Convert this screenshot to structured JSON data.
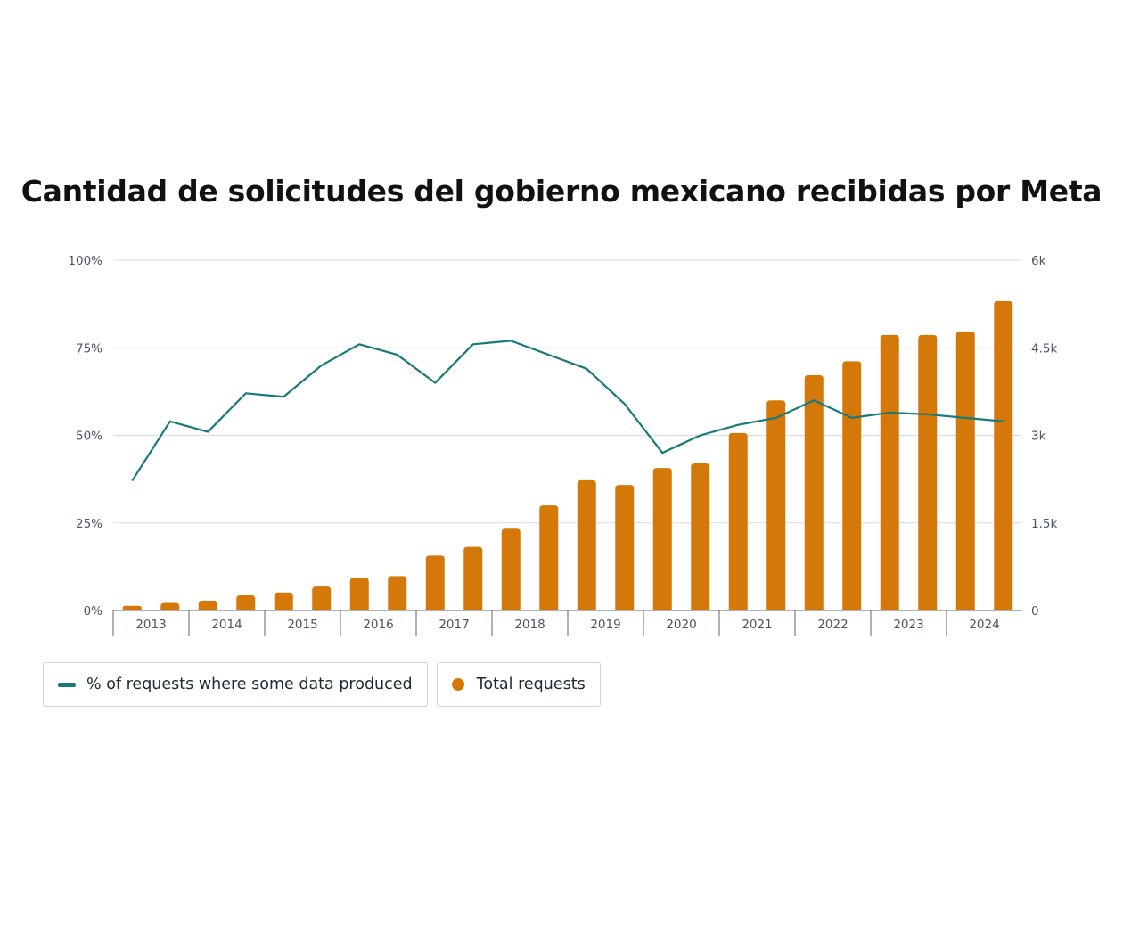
{
  "title": "Cantidad de solicitudes del gobierno mexicano recibidas por Meta",
  "chart_data": {
    "type": "bar",
    "title": "Cantidad de solicitudes del gobierno mexicano recibidas por Meta",
    "periods": [
      "2013-H1",
      "2013-H2",
      "2014-H1",
      "2014-H2",
      "2015-H1",
      "2015-H2",
      "2016-H1",
      "2016-H2",
      "2017-H1",
      "2017-H2",
      "2018-H1",
      "2018-H2",
      "2019-H1",
      "2019-H2",
      "2020-H1",
      "2020-H2",
      "2021-H1",
      "2021-H2",
      "2022-H1",
      "2022-H2",
      "2023-H1",
      "2023-H2",
      "2024-H1",
      "2024-H2"
    ],
    "year_labels": [
      "2013",
      "2014",
      "2015",
      "2016",
      "2017",
      "2018",
      "2019",
      "2020",
      "2021",
      "2022",
      "2023",
      "2024"
    ],
    "left_axis": {
      "ticks": [
        "0%",
        "25%",
        "50%",
        "75%",
        "100%"
      ],
      "range": [
        0,
        100
      ]
    },
    "right_axis": {
      "ticks": [
        "0",
        "1.5k",
        "3k",
        "4.5k",
        "6k"
      ],
      "range": [
        0,
        6000
      ]
    },
    "series": [
      {
        "name": "Total requests",
        "kind": "bar",
        "axis": "right",
        "color": "#d4780a",
        "values": [
          80,
          130,
          170,
          260,
          310,
          410,
          560,
          590,
          940,
          1090,
          1400,
          1800,
          2230,
          2150,
          2440,
          2520,
          3040,
          3600,
          4030,
          4270,
          4720,
          4720,
          4780,
          5300
        ]
      },
      {
        "name": "% of requests where some data produced",
        "kind": "line",
        "axis": "left",
        "color": "#167a7a",
        "values": [
          37,
          54,
          51,
          62,
          61,
          70,
          76,
          73,
          65,
          76,
          77,
          73,
          69,
          59,
          45,
          50,
          53,
          55,
          60,
          55,
          56.5,
          56,
          55,
          54
        ]
      }
    ],
    "legend": [
      {
        "label": "% of requests where some data produced",
        "marker": "line",
        "color": "#167a7a"
      },
      {
        "label": "Total requests",
        "marker": "dot",
        "color": "#d4780a"
      }
    ]
  }
}
